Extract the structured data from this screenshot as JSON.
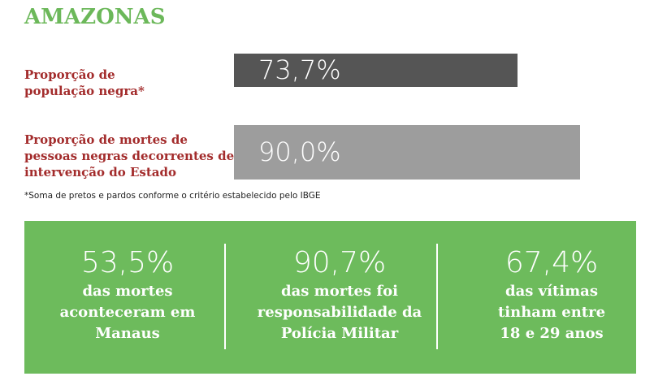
{
  "chart_data": {
    "type": "bar",
    "orientation": "horizontal",
    "title": "AMAZONAS",
    "categories": [
      "Proporção de\npopulação negra*",
      "Proporção de mortes de\npessoas negras decorrentes de\nintervenção do Estado"
    ],
    "values": [
      73.7,
      90.0
    ],
    "value_labels": [
      "73,7%",
      "90,0%"
    ],
    "colors": [
      "#555555",
      "#9d9d9d"
    ],
    "xlim": [
      0,
      100
    ],
    "footnote": "*Soma de pretos e pardos conforme o critério estabelecido pelo IBGE"
  },
  "highlights": [
    {
      "figure": "53,5%",
      "text": "das mortes\naconteceram em\nManaus"
    },
    {
      "figure": "90,7%",
      "text": "das mortes foi\nresponsabilidade da\nPolícia Militar"
    },
    {
      "figure": "67,4%",
      "text": "das vítimas\ntinham entre\n18 e 29 anos"
    }
  ]
}
